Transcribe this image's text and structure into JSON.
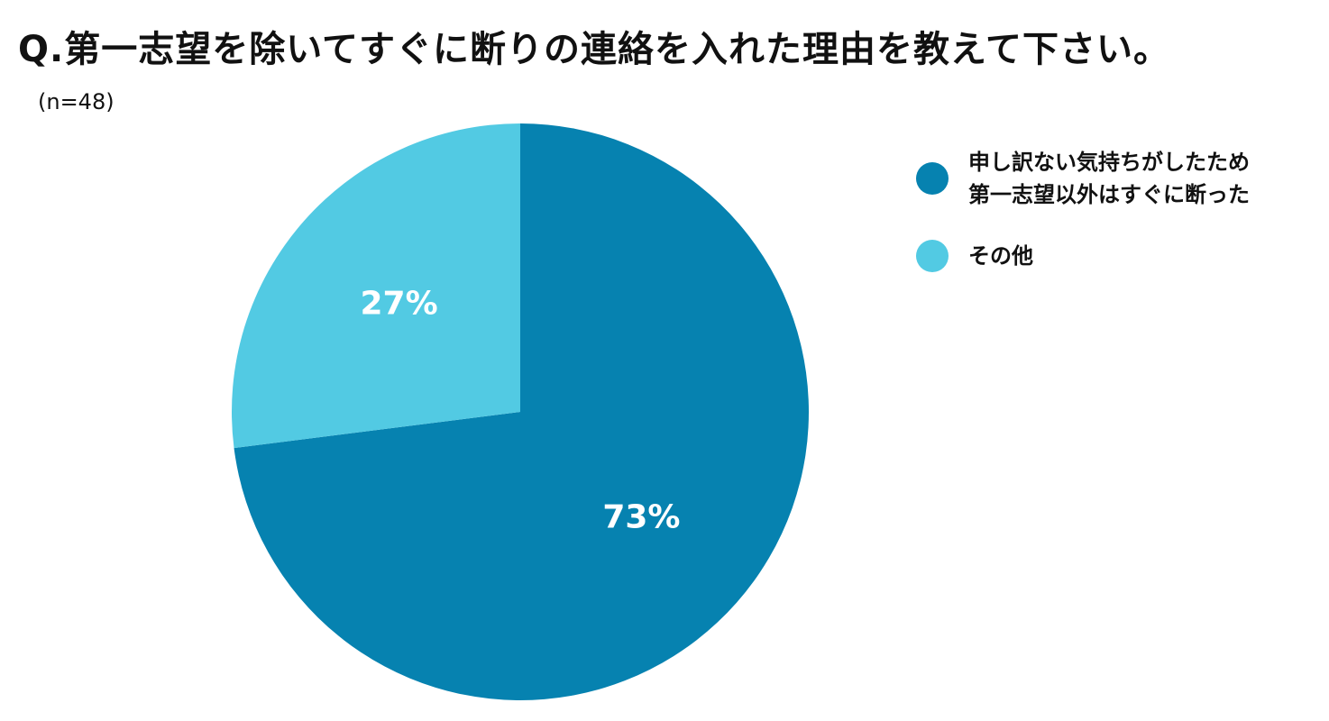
{
  "chart_data": {
    "type": "pie",
    "title": "Q.第一志望を除いてすぐに断りの連絡を入れた理由を教えて下さい。",
    "subtitle": "(n=48)",
    "slices": [
      {
        "label": "申し訳ない気持ちがしたため\n第一志望以外はすぐに断った",
        "value": 73,
        "display": "73%",
        "color": "#0682B0"
      },
      {
        "label": "その他",
        "value": 27,
        "display": "27%",
        "color": "#52CAE3"
      }
    ],
    "legend_position": "right",
    "label_color": "#ffffff"
  }
}
